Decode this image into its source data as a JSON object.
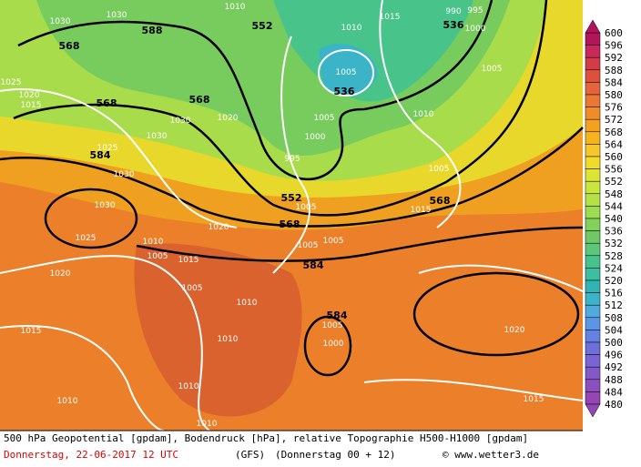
{
  "map": {
    "contour_labels": [
      "1030",
      "1030",
      "1010",
      "552",
      "1015",
      "990",
      "995",
      "536",
      "1000",
      "568",
      "588",
      "1010",
      "1025",
      "1005",
      "536",
      "1020",
      "1015",
      "568",
      "568",
      "1005",
      "1030",
      "1020",
      "1005",
      "1010",
      "1030",
      "1000",
      "1025",
      "584",
      "995",
      "1005",
      "1030",
      "552",
      "568",
      "1030",
      "1005",
      "1015",
      "1020",
      "568",
      "1025",
      "1010",
      "1005",
      "1005",
      "1005",
      "1015",
      "584",
      "1020",
      "1005",
      "1010",
      "584",
      "1005",
      "1015",
      "1020",
      "1010",
      "1000",
      "1010",
      "1010",
      "1015",
      "1010"
    ]
  },
  "legend": {
    "labels": [
      600,
      596,
      592,
      588,
      584,
      580,
      576,
      572,
      568,
      564,
      560,
      556,
      552,
      548,
      544,
      540,
      536,
      532,
      528,
      524,
      520,
      516,
      512,
      508,
      504,
      500,
      496,
      492,
      488,
      484,
      480
    ],
    "colors": [
      "#b4145a",
      "#c8285a",
      "#d23c46",
      "#dc503c",
      "#e6643c",
      "#eb7832",
      "#f08c28",
      "#f5a01e",
      "#f5b41e",
      "#f5c828",
      "#f0dc28",
      "#dce632",
      "#c8e63c",
      "#b4e146",
      "#9bdc50",
      "#82d25a",
      "#6ec864",
      "#5ac878",
      "#46c38c",
      "#3cbea0",
      "#32b4b4",
      "#3cb4c8",
      "#50aadc",
      "#5a96e6",
      "#6482e6",
      "#6e6edc",
      "#7864d2",
      "#825ac8",
      "#8c50be",
      "#9646b4"
    ]
  },
  "footer": {
    "line1": "500 hPa Geopotential [gpdam], Bodendruck [hPa], relative Topographie H500-H1000 [gpdam]",
    "date": "Donnerstag, 22-06-2017  12 UTC",
    "model": "(GFS)",
    "run": "(Donnerstag 00 + 12)",
    "credit": "© www.wetter3.de"
  }
}
